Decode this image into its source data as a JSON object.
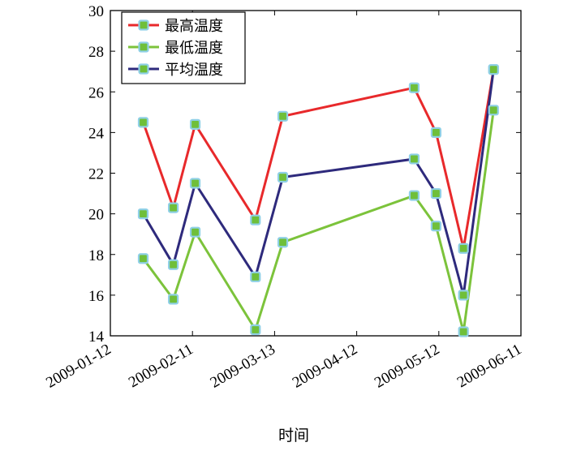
{
  "chart_data": {
    "type": "line",
    "xlabel": "时间",
    "ylabel": "",
    "ylim": [
      14,
      30
    ],
    "yticks": [
      14,
      16,
      18,
      20,
      22,
      24,
      26,
      28,
      30
    ],
    "xticks": [
      "2009-01-12",
      "2009-02-11",
      "2009-03-13",
      "2009-04-12",
      "2009-05-12",
      "2009-06-11"
    ],
    "xlim": [
      "2009-01-12",
      "2009-06-11"
    ],
    "x": [
      "2009-01-24",
      "2009-02-04",
      "2009-02-12",
      "2009-03-06",
      "2009-03-16",
      "2009-05-03",
      "2009-05-11",
      "2009-05-21",
      "2009-06-01"
    ],
    "legend_position": "top-left",
    "series": [
      {
        "name": "最高温度",
        "color": "#e8292b",
        "values": [
          24.5,
          20.3,
          24.4,
          19.7,
          24.8,
          26.2,
          24.0,
          18.3,
          27.1
        ]
      },
      {
        "name": "最低温度",
        "color": "#7cc33b",
        "values": [
          17.8,
          15.8,
          19.1,
          14.3,
          18.6,
          20.9,
          19.4,
          14.2,
          25.1
        ]
      },
      {
        "name": "平均温度",
        "color": "#2e2a7c",
        "values": [
          20.0,
          17.5,
          21.5,
          16.9,
          21.8,
          22.7,
          21.0,
          16.0,
          27.1
        ]
      }
    ],
    "marker": {
      "face": "#6fbf3a",
      "edge": "#8fd0e6"
    }
  }
}
